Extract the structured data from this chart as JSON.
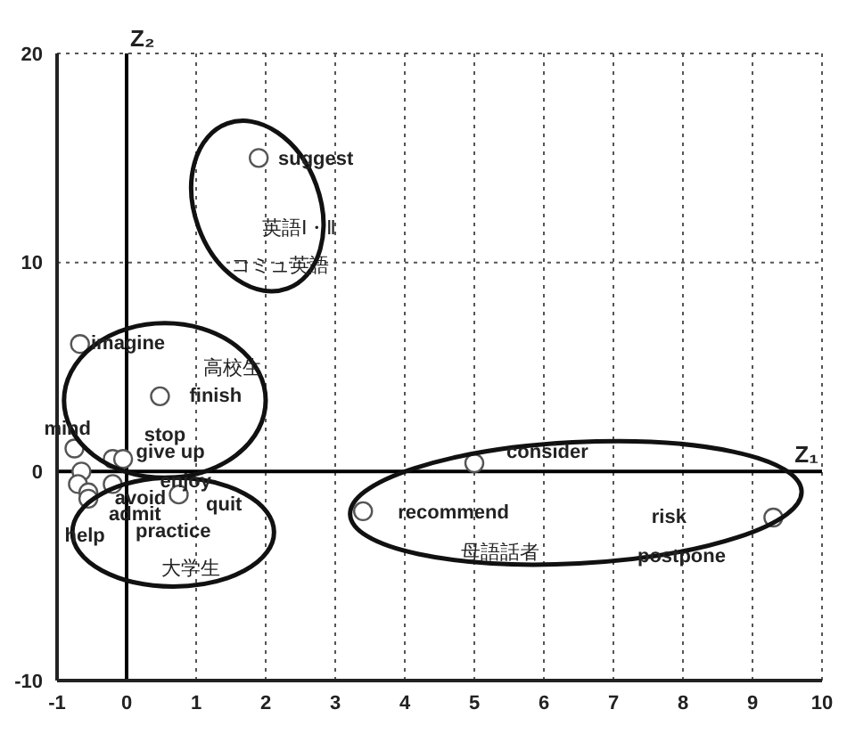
{
  "chart_data": {
    "type": "scatter",
    "xlabel": "Z₁",
    "ylabel": "Z₂",
    "x": [
      1.9,
      -0.67,
      0.48,
      -0.75,
      -0.2,
      -0.05,
      -0.65,
      -0.7,
      -0.55,
      -0.55,
      -0.2,
      0.75,
      5.0,
      3.4,
      9.3
    ],
    "series": [
      {
        "color": "#555555",
        "values": [
          15,
          6.1,
          3.6,
          1.1,
          0.6,
          0.6,
          0,
          -0.6,
          -1.0,
          -1.3,
          -0.6,
          -1.1,
          0.4,
          -1.9,
          -2.2
        ]
      }
    ],
    "xlim": [
      -1,
      10
    ],
    "xticks": [
      -1,
      0,
      1,
      2,
      3,
      4,
      5,
      6,
      7,
      8,
      9,
      10
    ],
    "ylim": [
      -10,
      20
    ],
    "yticks": [
      -10,
      0,
      10,
      20
    ],
    "grid": true,
    "marker": "circle",
    "annotations": [
      "suggest",
      "英語Ⅰ・Ⅱ",
      "コミュ英語",
      "imagine",
      "高校生",
      "finish",
      "mind",
      "stop",
      "give up",
      "enjoy",
      "avoid",
      "admit",
      "quit",
      "practice",
      "help",
      "大学生",
      "consider",
      "recommend",
      "母語話者",
      "risk",
      "postpone"
    ]
  }
}
